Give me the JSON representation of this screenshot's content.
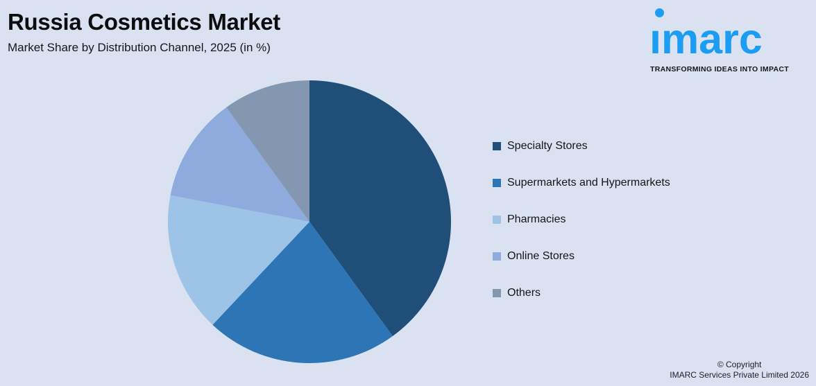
{
  "page": {
    "background": "#DAE2F1"
  },
  "header": {
    "title": "Russia Cosmetics Market",
    "subtitle": "Market Share by Distribution Channel, 2025 (in %)"
  },
  "logo": {
    "wordmark": "imarc",
    "tagline": "TRANSFORMING IDEAS INTO IMPACT",
    "brand_color": "#1B9DF3"
  },
  "chart_data": {
    "type": "pie",
    "title": "Russia Cosmetics Market",
    "subtitle": "Market Share by Distribution Channel, 2025 (in %)",
    "unit": "%",
    "categories": [
      "Specialty Stores",
      "Supermarkets and Hypermarkets",
      "Pharmacies",
      "Online Stores",
      "Others"
    ],
    "values": [
      40,
      22,
      16,
      12,
      10
    ],
    "colors": [
      "#1F4E79",
      "#2E75B6",
      "#9DC3E6",
      "#8FAADC",
      "#8497B0"
    ],
    "start_angle_deg": 0,
    "direction": "clockwise",
    "legend_position": "right",
    "data_labels": false
  },
  "footer": {
    "copyright_line1": "© Copyright",
    "copyright_line2": "IMARC Services Private Limited 2026"
  }
}
